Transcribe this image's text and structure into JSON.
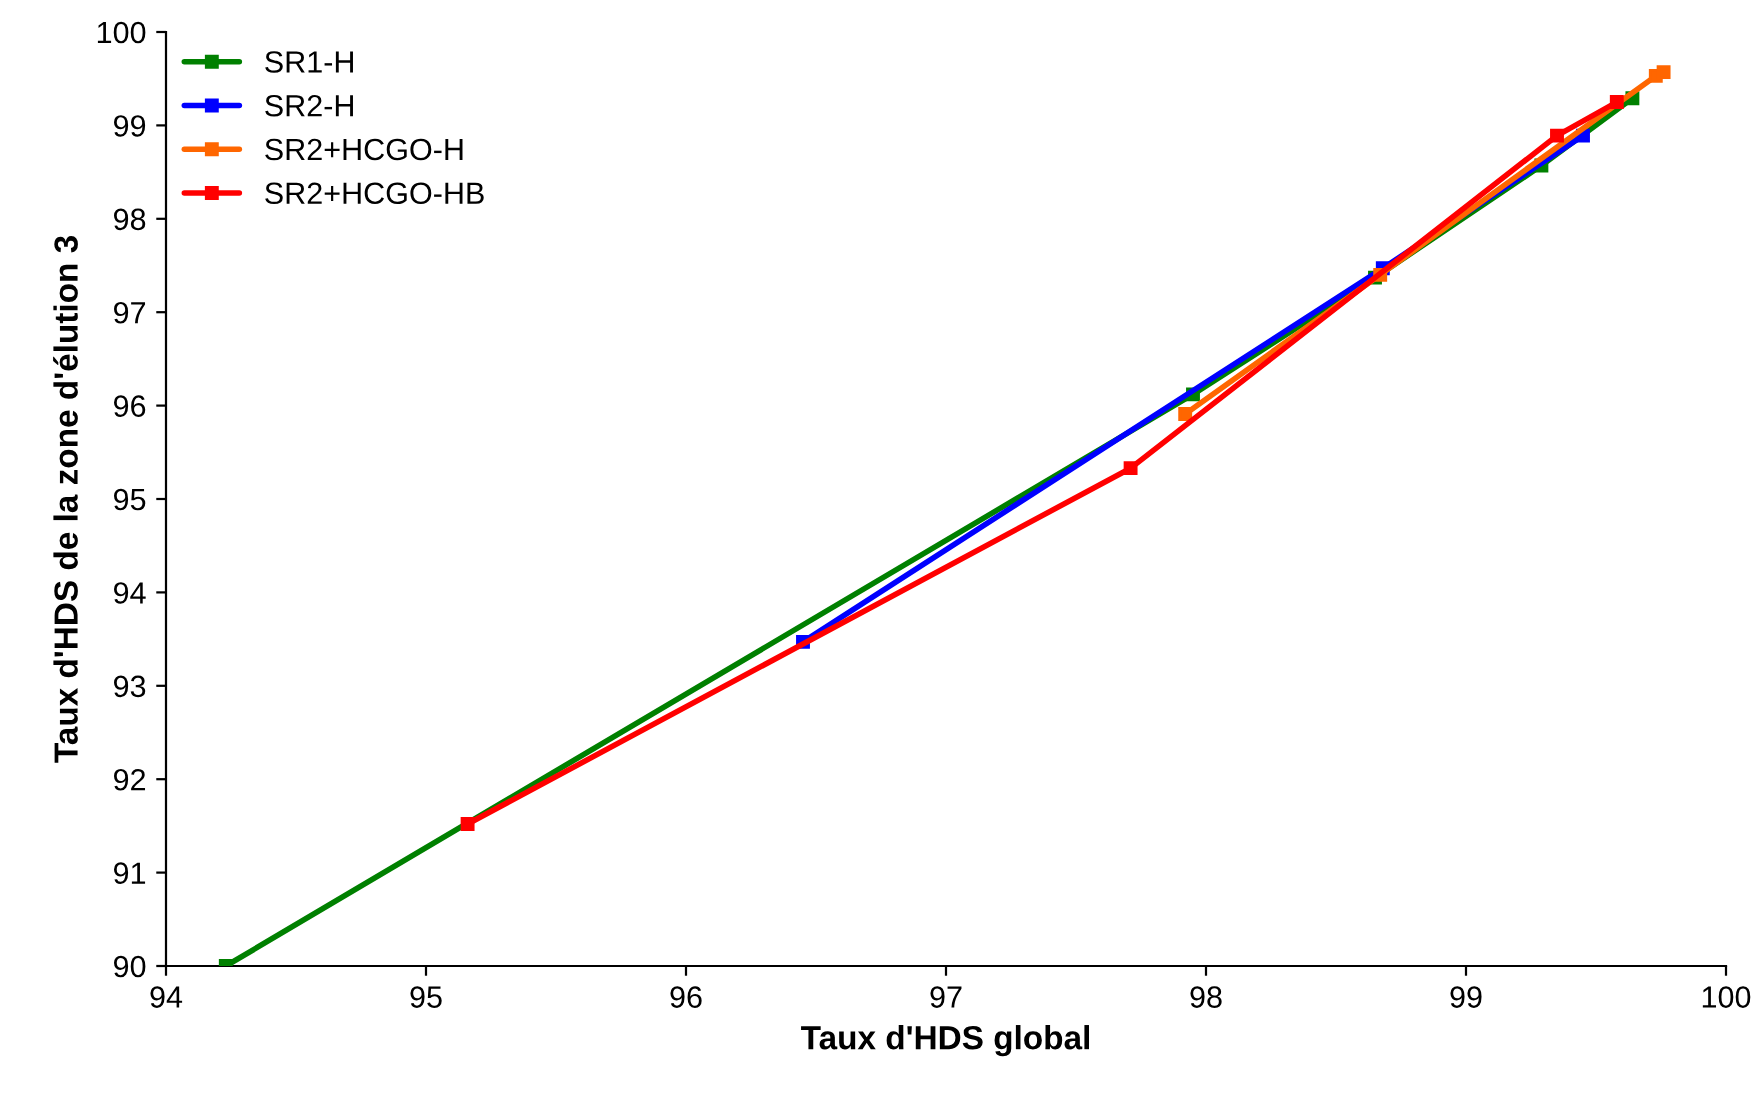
{
  "chart_data": {
    "type": "line",
    "xlabel": "Taux d'HDS global",
    "ylabel": "Taux d'HDS de la zone d'élution 3",
    "xlim": [
      94,
      100
    ],
    "xticks": [
      94,
      95,
      96,
      97,
      98,
      99,
      100
    ],
    "ylim": [
      90,
      100
    ],
    "yticks": [
      90,
      91,
      92,
      93,
      94,
      95,
      96,
      97,
      98,
      99,
      100
    ],
    "grid": false,
    "legend": "top left",
    "marker": "square",
    "series": [
      {
        "name": "SR1-H",
        "color": "#008000",
        "x": [
          94.23,
          97.95,
          98.65,
          99.29,
          99.64
        ],
        "values": [
          90.0,
          96.12,
          97.37,
          98.57,
          99.29
        ]
      },
      {
        "name": "SR2-H",
        "color": "#0000ff",
        "x": [
          96.45,
          98.68,
          99.45
        ],
        "values": [
          93.47,
          97.47,
          98.89
        ]
      },
      {
        "name": "SR2+HCGO-H",
        "color": "#ff6600",
        "x": [
          97.92,
          98.67,
          99.73,
          99.76
        ],
        "values": [
          95.91,
          97.4,
          99.53,
          99.57
        ]
      },
      {
        "name": "SR2+HCGO-HB",
        "color": "#ff0000",
        "x": [
          95.16,
          97.71,
          99.35,
          99.58
        ],
        "values": [
          91.52,
          95.33,
          98.89,
          99.25
        ]
      }
    ]
  }
}
